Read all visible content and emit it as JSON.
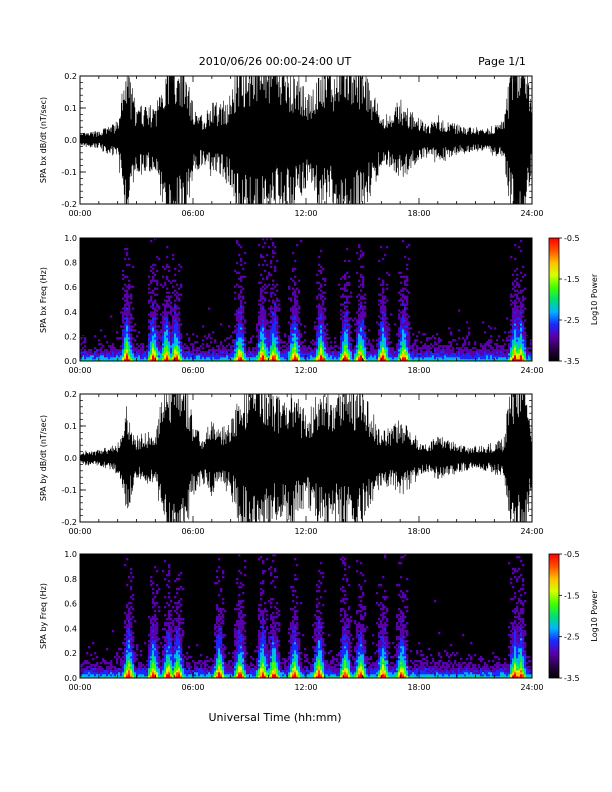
{
  "header": {
    "title": "2010/06/26  00:00-24:00 UT",
    "page_label": "Page 1/1"
  },
  "colors": {
    "trace": "#000000",
    "spectrogram_background": "#000000",
    "colorbar": [
      "#000000",
      "#2a0048",
      "#5a00aa",
      "#1a2aff",
      "#00b4ff",
      "#00e070",
      "#44ff00",
      "#d8ff00",
      "#ffc000",
      "#ff5000",
      "#ff0000"
    ]
  },
  "chart_data": [
    {
      "type": "line",
      "panel": "bx-waveform",
      "ylabel": "SPA bx dB/dt (nT/sec)",
      "xlim": [
        0,
        24
      ],
      "ylim": [
        -0.2,
        0.2
      ],
      "x_ticks": [
        "00:00",
        "06:00",
        "12:00",
        "18:00",
        "24:00"
      ],
      "y_ticks": [
        "-0.2",
        "-0.1",
        "0.0",
        "0.1",
        "0.2"
      ],
      "y_tick_values": [
        -0.2,
        -0.1,
        0.0,
        0.1,
        0.2
      ],
      "amplitude_envelope": {
        "hours": [
          0,
          1,
          2,
          2.5,
          3,
          3.5,
          4,
          4.5,
          5,
          5.5,
          6,
          6.5,
          7,
          7.5,
          8,
          8.5,
          9,
          9.5,
          10,
          10.5,
          11,
          11.5,
          12,
          12.5,
          13,
          13.5,
          14,
          14.5,
          15,
          15.5,
          16,
          16.5,
          17,
          17.5,
          18,
          18.5,
          19,
          19.5,
          20,
          20.5,
          21,
          21.5,
          22,
          22.5,
          23,
          23.5,
          24
        ],
        "values": [
          0.02,
          0.03,
          0.06,
          0.25,
          0.1,
          0.12,
          0.1,
          0.25,
          0.3,
          0.28,
          0.12,
          0.08,
          0.12,
          0.12,
          0.15,
          0.28,
          0.3,
          0.32,
          0.28,
          0.24,
          0.25,
          0.22,
          0.15,
          0.2,
          0.25,
          0.22,
          0.3,
          0.28,
          0.25,
          0.18,
          0.08,
          0.09,
          0.13,
          0.1,
          0.07,
          0.05,
          0.08,
          0.06,
          0.05,
          0.04,
          0.04,
          0.04,
          0.05,
          0.06,
          0.3,
          0.35,
          0.1
        ]
      }
    },
    {
      "type": "heatmap",
      "panel": "bx-spectrogram",
      "ylabel": "SPA bx Freq (Hz)",
      "xlim": [
        0,
        24
      ],
      "ylim": [
        0,
        1
      ],
      "x_ticks": [
        "00:00",
        "06:00",
        "12:00",
        "18:00",
        "24:00"
      ],
      "y_ticks": [
        "0.0",
        "0.2",
        "0.4",
        "0.6",
        "0.8",
        "1.0"
      ],
      "y_tick_values": [
        0,
        0.2,
        0.4,
        0.6,
        0.8,
        1.0
      ],
      "colorbar": {
        "label": "Log10 Power",
        "range": [
          -3.5,
          -0.5
        ],
        "ticks": [
          "-0.5",
          "-1.5",
          "-2.5",
          "-3.5"
        ],
        "tick_values": [
          -0.5,
          -1.5,
          -2.5,
          -3.5
        ]
      },
      "activity_hours": [
        2.5,
        3.9,
        4.6,
        5.1,
        8.5,
        9.7,
        10.3,
        11.4,
        12.8,
        14.1,
        14.9,
        16.1,
        17.2,
        23.1,
        23.4
      ]
    },
    {
      "type": "line",
      "panel": "by-waveform",
      "ylabel": "SPA by dB/dt (nT/sec)",
      "xlim": [
        0,
        24
      ],
      "ylim": [
        -0.2,
        0.2
      ],
      "x_ticks": [
        "00:00",
        "06:00",
        "12:00",
        "18:00",
        "24:00"
      ],
      "y_ticks": [
        "-0.2",
        "-0.1",
        "0.0",
        "0.1",
        "0.2"
      ],
      "y_tick_values": [
        -0.2,
        -0.1,
        0.0,
        0.1,
        0.2
      ],
      "amplitude_envelope": {
        "hours": [
          0,
          1,
          2,
          2.5,
          3,
          3.5,
          4,
          4.5,
          5,
          5.5,
          6,
          6.5,
          7,
          7.5,
          8,
          8.5,
          9,
          9.5,
          10,
          10.5,
          11,
          11.5,
          12,
          12.5,
          13,
          13.5,
          14,
          14.5,
          15,
          15.5,
          16,
          16.5,
          17,
          17.5,
          18,
          18.5,
          19,
          19.5,
          20,
          20.5,
          21,
          21.5,
          22,
          22.5,
          23,
          23.5,
          24
        ],
        "values": [
          0.02,
          0.025,
          0.05,
          0.18,
          0.07,
          0.08,
          0.08,
          0.25,
          0.35,
          0.3,
          0.12,
          0.08,
          0.12,
          0.1,
          0.12,
          0.22,
          0.28,
          0.35,
          0.25,
          0.2,
          0.22,
          0.2,
          0.15,
          0.2,
          0.22,
          0.2,
          0.25,
          0.25,
          0.22,
          0.15,
          0.09,
          0.1,
          0.12,
          0.1,
          0.06,
          0.05,
          0.07,
          0.06,
          0.05,
          0.04,
          0.04,
          0.04,
          0.05,
          0.06,
          0.3,
          0.35,
          0.1
        ]
      }
    },
    {
      "type": "heatmap",
      "panel": "by-spectrogram",
      "ylabel": "SPA by Freq (Hz)",
      "xlim": [
        0,
        24
      ],
      "ylim": [
        0,
        1
      ],
      "x_ticks": [
        "00:00",
        "06:00",
        "12:00",
        "18:00",
        "24:00"
      ],
      "y_ticks": [
        "0.0",
        "0.2",
        "0.4",
        "0.6",
        "0.8",
        "1.0"
      ],
      "y_tick_values": [
        0,
        0.2,
        0.4,
        0.6,
        0.8,
        1.0
      ],
      "colorbar": {
        "label": "Log10 Power",
        "range": [
          -3.5,
          -0.5
        ],
        "ticks": [
          "-0.5",
          "-1.5",
          "-2.5",
          "-3.5"
        ],
        "tick_values": [
          -0.5,
          -1.5,
          -2.5,
          -3.5
        ]
      },
      "activity_hours": [
        2.6,
        3.9,
        4.7,
        5.2,
        7.4,
        8.5,
        9.7,
        10.3,
        11.4,
        12.7,
        14.1,
        14.9,
        16.1,
        17.1,
        23.1,
        23.4
      ]
    }
  ],
  "xlabel": "Universal Time (hh:mm)"
}
